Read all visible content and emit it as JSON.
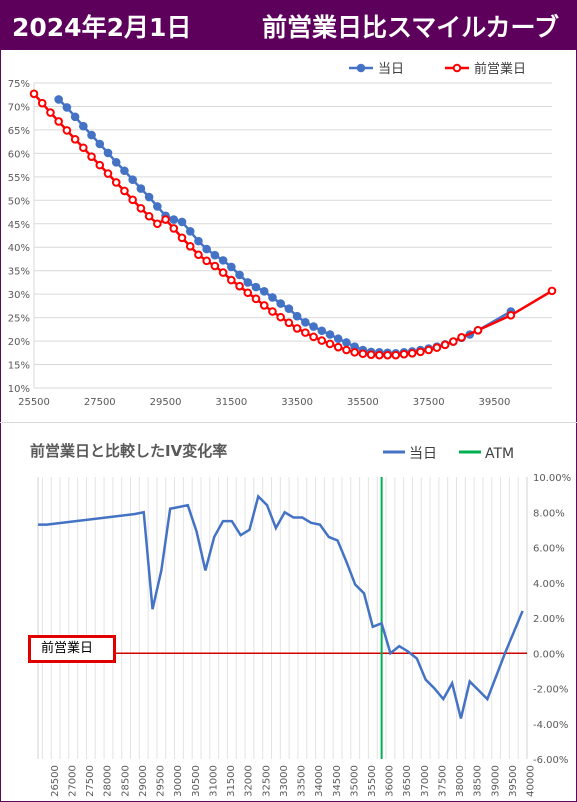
{
  "header": {
    "date": "2024年2月1日",
    "title": "前営業日比スマイルカーブ"
  },
  "colors": {
    "header_bg": "#5c005c",
    "today": "#4472c4",
    "prev": "#ff0000",
    "atm": "#00b050",
    "iv_line": "#4472c4",
    "zero_line": "#d00000"
  },
  "chart_data": [
    {
      "type": "line",
      "title": "",
      "legend": [
        "当日",
        "前営業日"
      ],
      "legend_position": "top-right",
      "xlim": [
        25500,
        41250
      ],
      "ylim": [
        10,
        75
      ],
      "xticks": [
        "25500",
        "27500",
        "29500",
        "31500",
        "33500",
        "35500",
        "37500",
        "39500"
      ],
      "xtick_values": [
        25500,
        27500,
        29500,
        31500,
        33500,
        35500,
        37500,
        39500
      ],
      "yticks": [
        "10%",
        "15%",
        "20%",
        "25%",
        "30%",
        "35%",
        "40%",
        "45%",
        "50%",
        "55%",
        "60%",
        "65%",
        "70%",
        "75%"
      ],
      "ytick_values": [
        10,
        15,
        20,
        25,
        30,
        35,
        40,
        45,
        50,
        55,
        60,
        65,
        70,
        75
      ],
      "grid": true,
      "series": [
        {
          "name": "当日",
          "x": [
            26250,
            26500,
            26750,
            27000,
            27250,
            27500,
            27750,
            28000,
            28250,
            28500,
            28750,
            29000,
            29250,
            29500,
            29750,
            30000,
            30250,
            30500,
            30750,
            31000,
            31250,
            31500,
            31750,
            32000,
            32250,
            32500,
            32750,
            33000,
            33250,
            33500,
            33750,
            34000,
            34250,
            34500,
            34750,
            35000,
            35250,
            35500,
            35750,
            36000,
            36250,
            36500,
            36750,
            37000,
            37250,
            37500,
            37750,
            38000,
            38250,
            38500,
            38750,
            39000,
            40000
          ],
          "values": [
            71.5,
            69.8,
            67.8,
            65.8,
            63.9,
            62.0,
            60.1,
            58.1,
            56.3,
            54.4,
            52.5,
            50.7,
            48.7,
            46.7,
            45.9,
            45.4,
            43.4,
            41.3,
            39.6,
            38.3,
            37.2,
            35.8,
            34.1,
            32.5,
            31.5,
            30.6,
            29.3,
            28.0,
            26.9,
            25.3,
            24.0,
            23.1,
            22.2,
            21.4,
            20.5,
            19.7,
            18.8,
            18.1,
            17.7,
            17.6,
            17.5,
            17.4,
            17.6,
            17.8,
            18.1,
            18.4,
            18.8,
            19.3,
            19.9,
            20.7,
            21.4,
            22.3,
            26.3
          ]
        },
        {
          "name": "前営業日",
          "x": [
            25500,
            25750,
            26000,
            26250,
            26500,
            26750,
            27000,
            27250,
            27500,
            27750,
            28000,
            28250,
            28500,
            28750,
            29000,
            29250,
            29500,
            29750,
            30000,
            30250,
            30500,
            30750,
            31000,
            31250,
            31500,
            31750,
            32000,
            32250,
            32500,
            32750,
            33000,
            33250,
            33500,
            33750,
            34000,
            34250,
            34500,
            34750,
            35000,
            35250,
            35500,
            35750,
            36000,
            36250,
            36500,
            36750,
            37000,
            37250,
            37500,
            37750,
            38000,
            38250,
            38500,
            39000,
            40000,
            41250
          ],
          "values": [
            72.7,
            70.7,
            68.7,
            66.8,
            64.9,
            63.0,
            61.2,
            59.3,
            57.5,
            55.7,
            53.8,
            52.0,
            50.1,
            48.3,
            46.6,
            45.0,
            45.9,
            44.0,
            42.0,
            40.2,
            38.4,
            37.1,
            36.0,
            34.6,
            33.0,
            31.7,
            30.3,
            29.0,
            27.6,
            26.3,
            25.1,
            23.9,
            22.7,
            21.8,
            20.9,
            20.1,
            19.4,
            18.7,
            18.1,
            17.6,
            17.3,
            17.1,
            17.0,
            17.0,
            17.0,
            17.2,
            17.4,
            17.7,
            18.1,
            18.6,
            19.2,
            19.9,
            20.8,
            22.3,
            25.5,
            30.7
          ]
        }
      ]
    },
    {
      "type": "line",
      "title": "前営業日と比較したIV変化率",
      "legend": [
        "当日",
        "ATM"
      ],
      "legend_position": "top-right",
      "ylim": [
        -6,
        10
      ],
      "yticks": [
        "10.00%",
        "8.00%",
        "6.00%",
        "4.00%",
        "2.00%",
        "0.00%",
        "-2.00%",
        "-4.00%",
        "-6.00%"
      ],
      "ytick_values": [
        10,
        8,
        6,
        4,
        2,
        0,
        -2,
        -4,
        -6
      ],
      "xlim": [
        26250,
        40125
      ],
      "xtick_labels": [
        "26500",
        "27000",
        "27500",
        "28000",
        "28500",
        "29000",
        "29500",
        "30000",
        "30500",
        "31000",
        "31500",
        "32000",
        "32500",
        "33000",
        "33500",
        "34000",
        "34500",
        "35000",
        "35500",
        "36000",
        "36500",
        "37000",
        "37500",
        "38000",
        "38500",
        "39000",
        "39500",
        "40000"
      ],
      "xtick_values": [
        26500,
        27000,
        27500,
        28000,
        28500,
        29000,
        29500,
        30000,
        30500,
        31000,
        31500,
        32000,
        32500,
        33000,
        33500,
        34000,
        34500,
        35000,
        35500,
        36000,
        36500,
        37000,
        37500,
        38000,
        38500,
        39000,
        39500,
        40000
      ],
      "atm": 36000,
      "atm_label": "ATM",
      "reference_label": "前営業日",
      "series": [
        {
          "name": "当日",
          "x": [
            26250,
            26500,
            29000,
            29250,
            29500,
            29750,
            30000,
            30250,
            30500,
            30750,
            31000,
            31250,
            31500,
            31750,
            32000,
            32250,
            32500,
            32750,
            33000,
            33250,
            33500,
            33750,
            34000,
            34250,
            34500,
            34750,
            35000,
            35250,
            35500,
            35750,
            36000,
            36250,
            36500,
            36750,
            37000,
            37250,
            37500,
            37750,
            38000,
            38250,
            38500,
            38750,
            39000,
            39500,
            40000
          ],
          "values": [
            7.3,
            7.3,
            7.9,
            8.0,
            2.5,
            4.7,
            8.2,
            8.3,
            8.4,
            6.9,
            4.7,
            6.6,
            7.5,
            7.5,
            6.7,
            7.0,
            8.9,
            8.4,
            7.1,
            8.0,
            7.7,
            7.7,
            7.4,
            7.3,
            6.6,
            6.4,
            5.2,
            3.9,
            3.4,
            1.5,
            1.7,
            0.0,
            0.4,
            0.1,
            -0.3,
            -1.5,
            -2.0,
            -2.6,
            -1.7,
            -3.7,
            -1.6,
            -2.1,
            -2.6,
            0.0,
            2.4
          ]
        }
      ]
    }
  ]
}
